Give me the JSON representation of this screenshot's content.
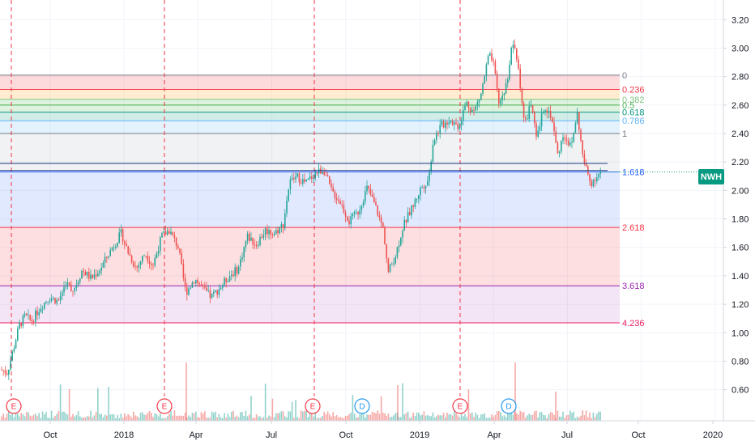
{
  "chart_data": {
    "type": "candlestick",
    "symbol": "NWH",
    "last_price": 2.13,
    "y_ticks": [
      "3.20",
      "3.00",
      "2.80",
      "2.60",
      "2.40",
      "2.20",
      "2.00",
      "1.80",
      "1.60",
      "1.40",
      "1.20",
      "1.00",
      "0.80",
      "0.60"
    ],
    "ylim": [
      0.45,
      3.27
    ],
    "x_ticks": [
      "Oct",
      "2018",
      "Apr",
      "Jul",
      "Oct",
      "2019",
      "Apr",
      "Jul",
      "Oct",
      "2020"
    ],
    "fib_levels": [
      {
        "label": "0",
        "value": 2.81,
        "color": "#787b86"
      },
      {
        "label": "0.236",
        "value": 2.71,
        "color": "#f23645"
      },
      {
        "label": "0.382",
        "value": 2.64,
        "color": "#81c784"
      },
      {
        "label": "0.5",
        "value": 2.6,
        "color": "#4caf50"
      },
      {
        "label": "0.618",
        "value": 2.55,
        "color": "#089981"
      },
      {
        "label": "0.786",
        "value": 2.49,
        "color": "#64b5f6"
      },
      {
        "label": "1",
        "value": 2.4,
        "color": "#787b86"
      },
      {
        "label": "1.618",
        "value": 2.13,
        "color": "#2962ff"
      },
      {
        "label": "2.618",
        "value": 1.74,
        "color": "#f23645"
      },
      {
        "label": "3.618",
        "value": 1.33,
        "color": "#9c27b0"
      },
      {
        "label": "4.236",
        "value": 1.07,
        "color": "#e91e63"
      }
    ],
    "events": [
      {
        "label": "E",
        "color": "#f23645"
      },
      {
        "label": "E",
        "color": "#f23645"
      },
      {
        "label": "E",
        "color": "#f23645"
      },
      {
        "label": "D",
        "color": "#2196f3"
      },
      {
        "label": "E",
        "color": "#f23645"
      },
      {
        "label": "D",
        "color": "#2196f3"
      }
    ],
    "price_path": [
      [
        0.02,
        0.74
      ],
      [
        0.4,
        0.72
      ],
      [
        1.2,
        1.05
      ],
      [
        1.6,
        1.12
      ],
      [
        2.0,
        1.08
      ],
      [
        2.6,
        1.18
      ],
      [
        3.2,
        1.25
      ],
      [
        3.8,
        1.22
      ],
      [
        4.3,
        1.35
      ],
      [
        4.8,
        1.3
      ],
      [
        5.4,
        1.44
      ],
      [
        6.0,
        1.38
      ],
      [
        6.6,
        1.45
      ],
      [
        7.3,
        1.58
      ],
      [
        8.0,
        1.7
      ],
      [
        8.4,
        1.58
      ],
      [
        9.0,
        1.45
      ],
      [
        9.6,
        1.56
      ],
      [
        10.1,
        1.47
      ],
      [
        10.7,
        1.68
      ],
      [
        11.2,
        1.72
      ],
      [
        11.8,
        1.6
      ],
      [
        12.3,
        1.28
      ],
      [
        12.9,
        1.38
      ],
      [
        13.5,
        1.3
      ],
      [
        14.0,
        1.25
      ],
      [
        14.6,
        1.32
      ],
      [
        15.2,
        1.4
      ],
      [
        15.8,
        1.45
      ],
      [
        16.4,
        1.68
      ],
      [
        17.0,
        1.62
      ],
      [
        17.6,
        1.72
      ],
      [
        18.2,
        1.7
      ],
      [
        18.8,
        1.76
      ],
      [
        19.2,
        2.05
      ],
      [
        19.7,
        2.1
      ],
      [
        20.3,
        2.05
      ],
      [
        20.9,
        2.12
      ],
      [
        21.5,
        2.15
      ],
      [
        22.0,
        2.0
      ],
      [
        22.6,
        1.92
      ],
      [
        23.2,
        1.78
      ],
      [
        23.8,
        1.85
      ],
      [
        24.4,
        2.02
      ],
      [
        24.9,
        1.9
      ],
      [
        25.5,
        1.72
      ],
      [
        25.8,
        1.42
      ],
      [
        26.3,
        1.55
      ],
      [
        26.8,
        1.75
      ],
      [
        27.4,
        1.88
      ],
      [
        28.0,
        2.02
      ],
      [
        28.5,
        2.08
      ],
      [
        28.8,
        2.35
      ],
      [
        29.3,
        2.45
      ],
      [
        29.9,
        2.5
      ],
      [
        30.5,
        2.45
      ],
      [
        31.0,
        2.62
      ],
      [
        31.5,
        2.55
      ],
      [
        32.0,
        2.68
      ],
      [
        32.5,
        2.95
      ],
      [
        32.8,
        2.9
      ],
      [
        33.2,
        2.6
      ],
      [
        33.7,
        2.75
      ],
      [
        34.1,
        3.05
      ],
      [
        34.5,
        2.85
      ],
      [
        34.9,
        2.45
      ],
      [
        35.3,
        2.62
      ],
      [
        35.7,
        2.35
      ],
      [
        36.2,
        2.6
      ],
      [
        36.7,
        2.52
      ],
      [
        37.1,
        2.25
      ],
      [
        37.5,
        2.4
      ],
      [
        38.0,
        2.3
      ],
      [
        38.4,
        2.55
      ],
      [
        38.8,
        2.22
      ],
      [
        39.3,
        2.05
      ],
      [
        39.7,
        2.1
      ],
      [
        40.0,
        2.13
      ]
    ],
    "grid": true
  }
}
